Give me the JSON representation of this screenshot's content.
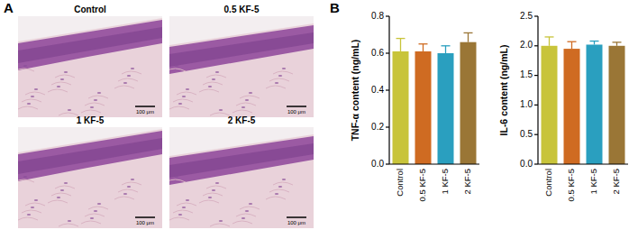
{
  "figure": {
    "panel_labels": [
      "A",
      "B"
    ],
    "images": [
      {
        "label": "Control",
        "scale_bar": "100 μm"
      },
      {
        "label": "0.5 KF-5",
        "scale_bar": "100 μm"
      },
      {
        "label": "1 KF-5",
        "scale_bar": "100 μm"
      },
      {
        "label": "2 KF-5",
        "scale_bar": "100 μm"
      }
    ]
  },
  "chart_data": [
    {
      "type": "bar",
      "y_label": "TNF-α content (ng/mL)",
      "categories": [
        "Control",
        "0.5 KF-5",
        "1 KF-5",
        "2 KF-5"
      ],
      "values": [
        0.61,
        0.61,
        0.6,
        0.66
      ],
      "errors": [
        0.07,
        0.04,
        0.04,
        0.05
      ],
      "colors": [
        "#c8c43a",
        "#cf6b22",
        "#2a9fbf",
        "#9a7636"
      ],
      "ylim": [
        0,
        0.8
      ],
      "yticks": [
        {
          "value": 0,
          "label": "0.0"
        },
        0.2,
        0.4,
        0.6,
        0.8
      ]
    },
    {
      "type": "bar",
      "y_label": "IL-6 content (ng/mL)",
      "categories": [
        "Control",
        "0.5 KF-5",
        "1 KF-5",
        "2 KF-5"
      ],
      "values": [
        2.0,
        1.95,
        2.02,
        2.0
      ],
      "errors": [
        0.15,
        0.12,
        0.06,
        0.06
      ],
      "colors": [
        "#c8c43a",
        "#cf6b22",
        "#2a9fbf",
        "#9a7636"
      ],
      "ylim": [
        0,
        2.5
      ],
      "yticks": [
        {
          "value": 0,
          "label": "0.0"
        },
        0.5,
        {
          "value": 1,
          "label": "1.0"
        },
        1.5,
        {
          "value": 2,
          "label": "2.0"
        },
        2.5
      ]
    }
  ]
}
